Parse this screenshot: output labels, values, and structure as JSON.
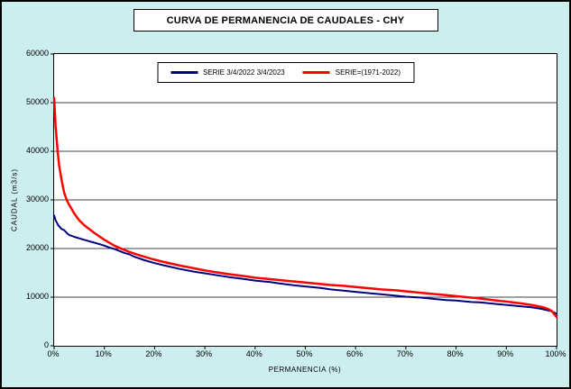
{
  "chart_data": {
    "type": "line",
    "title": "CURVA DE PERMANENCIA DE CAUDALES - CHY",
    "xlabel": "PERMANENCIA (%)",
    "ylabel": "CAUDAL (m3/s)",
    "xlim": [
      0,
      100
    ],
    "ylim": [
      0,
      60000
    ],
    "x_ticks": [
      "0%",
      "10%",
      "20%",
      "30%",
      "40%",
      "50%",
      "60%",
      "70%",
      "80%",
      "90%",
      "100%"
    ],
    "x_tick_values": [
      0,
      10,
      20,
      30,
      40,
      50,
      60,
      70,
      80,
      90,
      100
    ],
    "y_ticks": [
      0,
      10000,
      20000,
      30000,
      40000,
      50000,
      60000
    ],
    "grid": "horizontal",
    "legend_position": "top-center-inside",
    "background_color": "#cdeeee",
    "plot_background": "#ffffff",
    "series": [
      {
        "name": "SERIE 3/4/2022 3/4/2023",
        "color": "#000080",
        "width": 2,
        "points": [
          [
            0,
            26800
          ],
          [
            0.3,
            25800
          ],
          [
            0.8,
            24800
          ],
          [
            1.5,
            24000
          ],
          [
            2,
            23800
          ],
          [
            2.6,
            23100
          ],
          [
            3,
            22800
          ],
          [
            4,
            22400
          ],
          [
            5,
            22100
          ],
          [
            6,
            21800
          ],
          [
            7,
            21500
          ],
          [
            8,
            21200
          ],
          [
            9,
            20900
          ],
          [
            10,
            20600
          ],
          [
            11,
            20200
          ],
          [
            12,
            19900
          ],
          [
            13,
            19500
          ],
          [
            14,
            19100
          ],
          [
            15,
            18800
          ],
          [
            16,
            18300
          ],
          [
            18,
            17600
          ],
          [
            20,
            17000
          ],
          [
            22,
            16500
          ],
          [
            25,
            15800
          ],
          [
            28,
            15200
          ],
          [
            30,
            14900
          ],
          [
            33,
            14400
          ],
          [
            35,
            14100
          ],
          [
            38,
            13700
          ],
          [
            40,
            13400
          ],
          [
            43,
            13100
          ],
          [
            45,
            12800
          ],
          [
            48,
            12400
          ],
          [
            50,
            12200
          ],
          [
            53,
            11900
          ],
          [
            55,
            11600
          ],
          [
            58,
            11300
          ],
          [
            60,
            11100
          ],
          [
            63,
            10800
          ],
          [
            65,
            10600
          ],
          [
            68,
            10300
          ],
          [
            70,
            10100
          ],
          [
            73,
            9900
          ],
          [
            75,
            9700
          ],
          [
            78,
            9400
          ],
          [
            80,
            9300
          ],
          [
            83,
            9000
          ],
          [
            85,
            8900
          ],
          [
            88,
            8600
          ],
          [
            90,
            8400
          ],
          [
            93,
            8100
          ],
          [
            95,
            7900
          ],
          [
            97,
            7600
          ],
          [
            99,
            7100
          ],
          [
            100,
            6600
          ]
        ]
      },
      {
        "name": "SERIE=(1971-2022)",
        "color": "#ff0000",
        "width": 2.5,
        "points": [
          [
            0,
            51000
          ],
          [
            0.3,
            45000
          ],
          [
            0.7,
            40000
          ],
          [
            1,
            37000
          ],
          [
            1.5,
            34000
          ],
          [
            2,
            31500
          ],
          [
            2.5,
            30000
          ],
          [
            3,
            29000
          ],
          [
            4,
            27200
          ],
          [
            5,
            25800
          ],
          [
            6,
            24800
          ],
          [
            7,
            24000
          ],
          [
            8,
            23200
          ],
          [
            9,
            22500
          ],
          [
            10,
            21800
          ],
          [
            12,
            20600
          ],
          [
            14,
            19700
          ],
          [
            15,
            19300
          ],
          [
            17,
            18600
          ],
          [
            20,
            17700
          ],
          [
            22,
            17200
          ],
          [
            25,
            16500
          ],
          [
            28,
            15900
          ],
          [
            30,
            15500
          ],
          [
            33,
            15000
          ],
          [
            35,
            14700
          ],
          [
            38,
            14300
          ],
          [
            40,
            14000
          ],
          [
            43,
            13700
          ],
          [
            45,
            13500
          ],
          [
            48,
            13200
          ],
          [
            50,
            13000
          ],
          [
            53,
            12700
          ],
          [
            55,
            12500
          ],
          [
            58,
            12300
          ],
          [
            60,
            12100
          ],
          [
            63,
            11800
          ],
          [
            65,
            11600
          ],
          [
            68,
            11400
          ],
          [
            70,
            11200
          ],
          [
            73,
            10900
          ],
          [
            75,
            10700
          ],
          [
            78,
            10400
          ],
          [
            80,
            10200
          ],
          [
            83,
            9900
          ],
          [
            85,
            9700
          ],
          [
            88,
            9300
          ],
          [
            90,
            9100
          ],
          [
            93,
            8700
          ],
          [
            95,
            8400
          ],
          [
            97,
            8000
          ],
          [
            98,
            7700
          ],
          [
            99,
            7200
          ],
          [
            100,
            5900
          ]
        ]
      }
    ]
  }
}
